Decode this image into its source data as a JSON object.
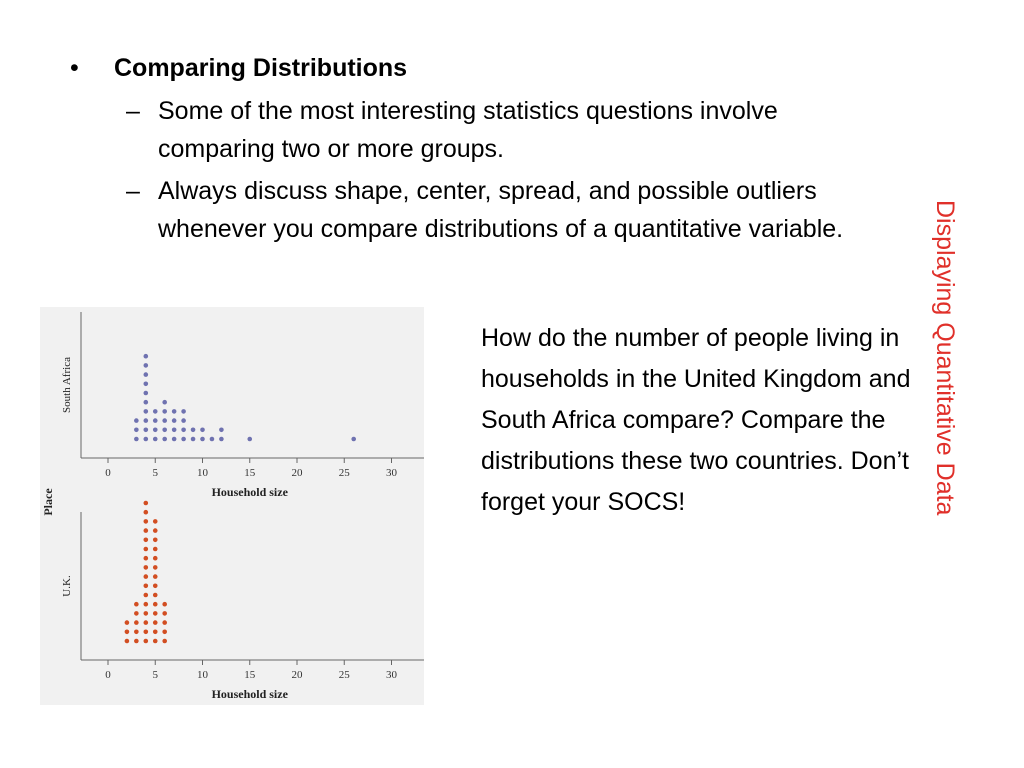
{
  "slide": {
    "bullet_main": "Comparing Distributions",
    "bullet_symbol": "•",
    "dash_symbol": "–",
    "sub_bullets": [
      "Some of the most interesting statistics questions involve comparing two or more groups.",
      "Always discuss shape, center, spread, and possible outliers whenever you compare distributions of a quantitative variable."
    ],
    "question": "How do the number of people living in households in the United Kingdom and South Africa compare?  Compare the distributions these two countries.  Don’t forget your SOCS!",
    "side_title": "Displaying Quantitative Data"
  },
  "chart_data": {
    "type": "dotplot",
    "facet_label": "Place",
    "xlabel": "Household size",
    "xlim": [
      0,
      30
    ],
    "xticks": [
      0,
      5,
      10,
      15,
      20,
      25,
      30
    ],
    "panels": [
      {
        "name": "South Africa",
        "color": "#6f72b0",
        "counts": [
          {
            "x": 3,
            "count": 3
          },
          {
            "x": 4,
            "count": 10
          },
          {
            "x": 5,
            "count": 4
          },
          {
            "x": 6,
            "count": 5
          },
          {
            "x": 7,
            "count": 4
          },
          {
            "x": 8,
            "count": 4
          },
          {
            "x": 9,
            "count": 2
          },
          {
            "x": 10,
            "count": 2
          },
          {
            "x": 11,
            "count": 1
          },
          {
            "x": 12,
            "count": 2
          },
          {
            "x": 15,
            "count": 1
          },
          {
            "x": 26,
            "count": 1
          }
        ]
      },
      {
        "name": "U.K.",
        "color": "#d24e22",
        "counts": [
          {
            "x": 2,
            "count": 3
          },
          {
            "x": 3,
            "count": 5
          },
          {
            "x": 4,
            "count": 16
          },
          {
            "x": 5,
            "count": 14
          },
          {
            "x": 6,
            "count": 5
          }
        ]
      }
    ]
  }
}
